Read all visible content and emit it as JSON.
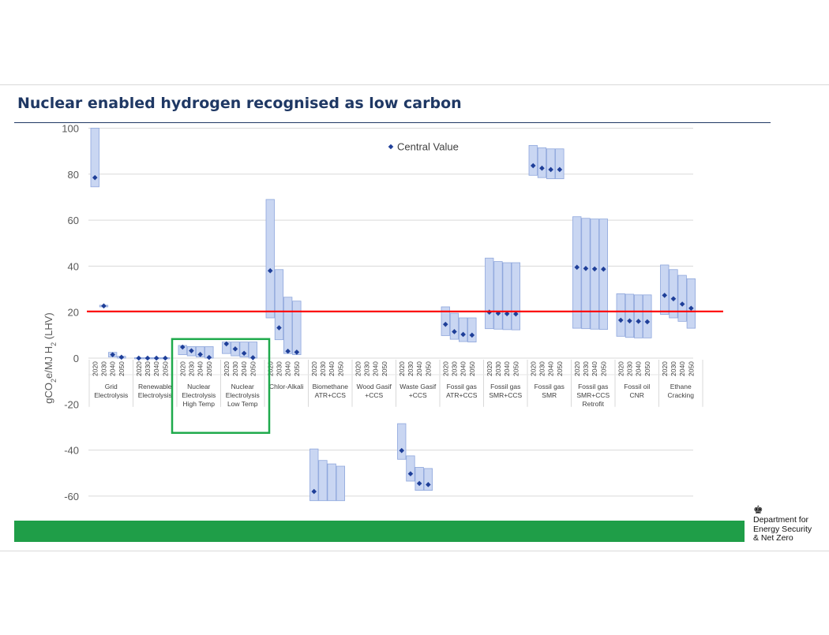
{
  "title": "Nuclear enabled hydrogen recognised as low carbon",
  "organisation": {
    "lines": [
      "Department for",
      "Energy Security",
      "& Net Zero"
    ],
    "crest_icon": "royal-crest-icon"
  },
  "colors": {
    "title": "#1f3864",
    "range_fill": "#c9d6f2",
    "range_stroke": "#8ea6dc",
    "marker": "#1f3f99",
    "threshold": "#ff0000",
    "highlight_box": "#1faa4c",
    "footer_bar": "#1f9e48"
  },
  "chart_data": {
    "type": "range-bar-with-markers",
    "ylabel": "gCO2e/MJ H2 (LHV)",
    "ylim": [
      -62,
      100
    ],
    "yticks": [
      "100",
      "80",
      "60",
      "40",
      "20",
      "0",
      "-20",
      "-40",
      "-60"
    ],
    "grid": true,
    "legend": {
      "label": "Central Value",
      "placement": "top-center"
    },
    "threshold": 20.3,
    "highlight_groups": [
      2,
      3
    ],
    "years": [
      "2020",
      "2030",
      "2040",
      "2050"
    ],
    "groups": [
      {
        "label": [
          "Grid",
          "Electrolysis"
        ],
        "bars": [
          [
            74.5,
            100.5,
            78.5
          ],
          [
            22.3,
            23.0,
            22.7
          ],
          [
            0.5,
            2.5,
            1.5
          ],
          [
            0,
            0.8,
            0.4
          ]
        ]
      },
      {
        "label": [
          "Renewable",
          "Electrolysis"
        ],
        "bars": [
          [
            -0.2,
            0.2,
            0
          ],
          [
            -0.2,
            0.2,
            0
          ],
          [
            -0.2,
            0.2,
            0
          ],
          [
            -0.2,
            0.2,
            0
          ]
        ]
      },
      {
        "label": [
          "Nuclear",
          "Electrolysis",
          "High Temp"
        ],
        "bars": [
          [
            1.5,
            5.5,
            4.8
          ],
          [
            1.0,
            5.0,
            3.2
          ],
          [
            0.5,
            5.0,
            1.6
          ],
          [
            0,
            5.0,
            0.3
          ]
        ]
      },
      {
        "label": [
          "Nuclear",
          "Electrolysis",
          "Low Temp"
        ],
        "bars": [
          [
            2.0,
            7.0,
            6.2
          ],
          [
            1.0,
            7.0,
            4.0
          ],
          [
            0.5,
            7.0,
            2.1
          ],
          [
            0,
            7.0,
            0.2
          ]
        ]
      },
      {
        "label": [
          "Chlor-Alkali"
        ],
        "bars": [
          [
            17.5,
            69.0,
            38.0
          ],
          [
            8.0,
            38.5,
            13.2
          ],
          [
            2.0,
            26.5,
            3.0
          ],
          [
            1.5,
            24.8,
            2.6
          ]
        ]
      },
      {
        "label": [
          "Biomethane",
          "ATR+CCS"
        ],
        "bars": [
          [
            -62,
            -39.5,
            -58.0
          ],
          [
            -62,
            -44.5,
            null
          ],
          [
            -62,
            -46.0,
            null
          ],
          [
            -62,
            -47.0,
            null
          ]
        ]
      },
      {
        "label": [
          "Wood Gasif",
          "+CCS"
        ],
        "bars": []
      },
      {
        "label": [
          "Waste Gasif",
          "+CCS"
        ],
        "bars": [
          [
            -44.0,
            -28.5,
            -40.2
          ],
          [
            -53.5,
            -42.5,
            -50.3
          ],
          [
            -57.5,
            -47.5,
            -54.5
          ],
          [
            -57.5,
            -48.0,
            -55.0
          ]
        ]
      },
      {
        "label": [
          "Fossil gas",
          "ATR+CCS"
        ],
        "bars": [
          [
            9.8,
            22.3,
            14.7
          ],
          [
            8.2,
            19.5,
            11.5
          ],
          [
            7.2,
            17.5,
            10.3
          ],
          [
            7.0,
            17.5,
            10.0
          ]
        ]
      },
      {
        "label": [
          "Fossil gas",
          "SMR+CCS"
        ],
        "bars": [
          [
            12.8,
            43.5,
            20.0
          ],
          [
            12.6,
            42.0,
            19.5
          ],
          [
            12.4,
            41.5,
            19.3
          ],
          [
            12.3,
            41.5,
            19.2
          ]
        ]
      },
      {
        "label": [
          "Fossil gas",
          "SMR"
        ],
        "bars": [
          [
            79.5,
            92.5,
            83.7
          ],
          [
            78.5,
            91.5,
            82.6
          ],
          [
            78.0,
            91.0,
            82.0
          ],
          [
            78.0,
            91.0,
            82.0
          ]
        ]
      },
      {
        "label": [
          "Fossil gas",
          "SMR+CCS",
          "Retrofit"
        ],
        "bars": [
          [
            13.0,
            61.5,
            39.5
          ],
          [
            12.8,
            60.8,
            39.0
          ],
          [
            12.6,
            60.5,
            38.8
          ],
          [
            12.5,
            60.5,
            38.7
          ]
        ]
      },
      {
        "label": [
          "Fossil oil",
          "CNR"
        ],
        "bars": [
          [
            9.5,
            28.0,
            16.5
          ],
          [
            9.0,
            27.8,
            16.2
          ],
          [
            8.8,
            27.5,
            16.0
          ],
          [
            8.8,
            27.5,
            15.8
          ]
        ]
      },
      {
        "label": [
          "Ethane",
          "Cracking"
        ],
        "bars": [
          [
            19.0,
            40.5,
            27.3
          ],
          [
            17.5,
            38.5,
            25.8
          ],
          [
            16.0,
            36.0,
            23.5
          ],
          [
            13.0,
            34.5,
            21.7
          ]
        ]
      }
    ]
  }
}
